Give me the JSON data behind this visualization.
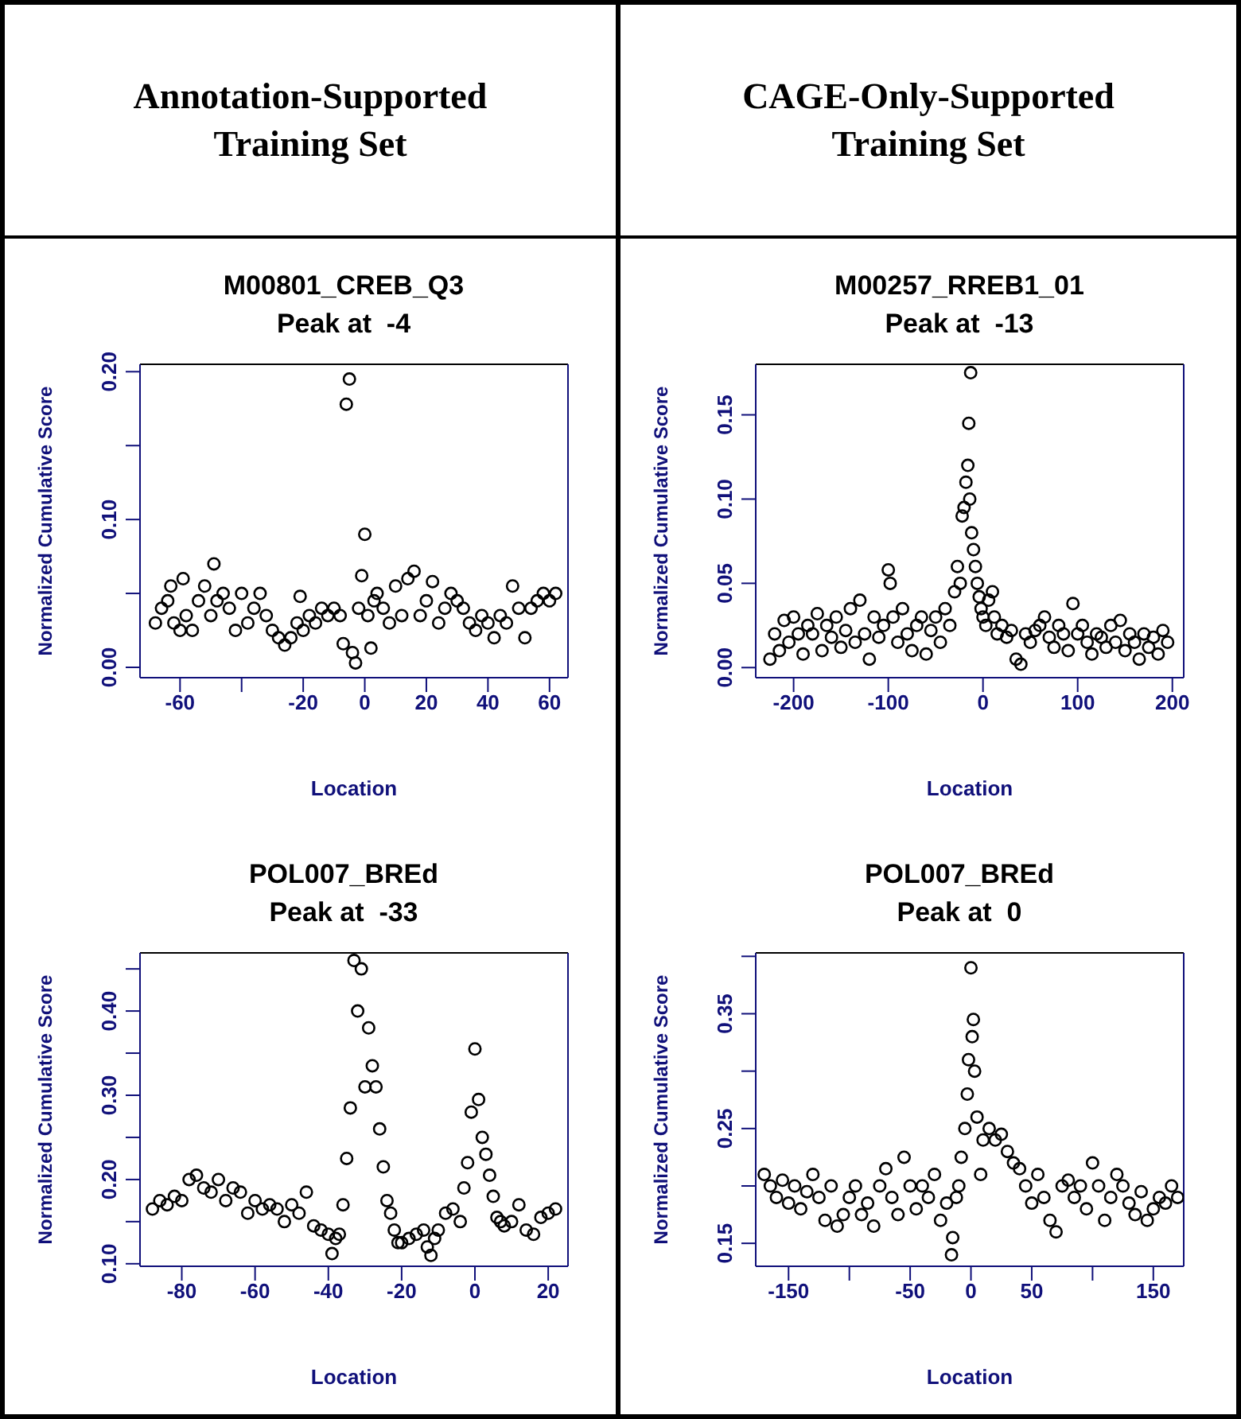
{
  "chart_data": [
    {
      "type": "scatter",
      "annotations": [
        "Annotation-Supported Training Set"
      ],
      "title": "M00801_CREB_Q3",
      "subtitle": "Peak at  -4",
      "xlabel": "Location",
      "ylabel": "Normalized Cumulative Score",
      "marker": "circle",
      "xlim": [
        -73,
        66
      ],
      "ylim": [
        -0.007,
        0.205
      ],
      "xticks": [
        -60,
        {
          "value": -40,
          "label": null
        },
        -20,
        0,
        20,
        40,
        60
      ],
      "yticks": [
        {
          "value": 0,
          "label": "0.00"
        },
        {
          "value": 0.05,
          "label": null
        },
        {
          "value": 0.1,
          "label": "0.10"
        },
        {
          "value": 0.15,
          "label": null
        },
        {
          "value": 0.2,
          "label": "0.20"
        }
      ],
      "x": [
        -68,
        -66,
        -64,
        -63,
        -62,
        -60,
        -59,
        -58,
        -56,
        -54,
        -52,
        -50,
        -49,
        -48,
        -46,
        -44,
        -42,
        -40,
        -38,
        -36,
        -34,
        -32,
        -30,
        -28,
        -26,
        -24,
        -22,
        -21,
        -20,
        -18,
        -16,
        -14,
        -12,
        -10,
        -8,
        -7,
        -6,
        -5,
        -4,
        -3,
        -2,
        -1,
        0,
        1,
        2,
        3,
        4,
        6,
        8,
        10,
        12,
        14,
        16,
        18,
        20,
        22,
        24,
        26,
        28,
        30,
        32,
        34,
        36,
        38,
        40,
        42,
        44,
        46,
        48,
        50,
        52,
        54,
        56,
        58,
        60,
        62
      ],
      "series": [
        {
          "color": "#000000",
          "values": [
            0.03,
            0.04,
            0.045,
            0.055,
            0.03,
            0.025,
            0.06,
            0.035,
            0.025,
            0.045,
            0.055,
            0.035,
            0.07,
            0.045,
            0.05,
            0.04,
            0.025,
            0.05,
            0.03,
            0.04,
            0.05,
            0.035,
            0.025,
            0.02,
            0.015,
            0.02,
            0.03,
            0.048,
            0.025,
            0.035,
            0.03,
            0.04,
            0.035,
            0.04,
            0.035,
            0.016,
            0.178,
            0.195,
            0.01,
            0.003,
            0.04,
            0.062,
            0.09,
            0.035,
            0.013,
            0.045,
            0.05,
            0.04,
            0.03,
            0.055,
            0.035,
            0.06,
            0.065,
            0.035,
            0.045,
            0.058,
            0.03,
            0.04,
            0.05,
            0.045,
            0.04,
            0.03,
            0.025,
            0.035,
            0.03,
            0.02,
            0.035,
            0.03,
            0.055,
            0.04,
            0.02,
            0.04,
            0.045,
            0.05,
            0.045,
            0.05
          ]
        }
      ]
    },
    {
      "type": "scatter",
      "annotations": [
        "CAGE-Only-Supported Training Set"
      ],
      "title": "M00257_RREB1_01",
      "subtitle": "Peak at  -13",
      "xlabel": "Location",
      "ylabel": "Normalized Cumulative Score",
      "marker": "circle",
      "xlim": [
        -240,
        212
      ],
      "ylim": [
        -0.006,
        0.18
      ],
      "xticks": [
        -200,
        -100,
        0,
        100,
        200
      ],
      "yticks": [
        {
          "value": 0,
          "label": "0.00"
        },
        {
          "value": 0.05,
          "label": "0.05"
        },
        {
          "value": 0.1,
          "label": "0.10"
        },
        {
          "value": 0.15,
          "label": "0.15"
        }
      ],
      "x": [
        -225,
        -220,
        -215,
        -210,
        -205,
        -200,
        -195,
        -190,
        -185,
        -180,
        -175,
        -170,
        -165,
        -160,
        -155,
        -150,
        -145,
        -140,
        -135,
        -130,
        -125,
        -120,
        -115,
        -110,
        -105,
        -100,
        -98,
        -95,
        -90,
        -85,
        -80,
        -75,
        -70,
        -65,
        -60,
        -55,
        -50,
        -45,
        -40,
        -35,
        -30,
        -27,
        -24,
        -22,
        -20,
        -18,
        -16,
        -15,
        -14,
        -13,
        -12,
        -10,
        -8,
        -6,
        -4,
        -2,
        0,
        3,
        6,
        10,
        12,
        15,
        20,
        25,
        30,
        35,
        40,
        45,
        50,
        55,
        60,
        65,
        70,
        75,
        80,
        85,
        90,
        95,
        100,
        105,
        110,
        115,
        120,
        125,
        130,
        135,
        140,
        145,
        150,
        155,
        160,
        165,
        170,
        175,
        180,
        185,
        190,
        195
      ],
      "series": [
        {
          "color": "#000000",
          "values": [
            0.005,
            0.02,
            0.01,
            0.028,
            0.015,
            0.03,
            0.02,
            0.008,
            0.025,
            0.02,
            0.032,
            0.01,
            0.025,
            0.018,
            0.03,
            0.012,
            0.022,
            0.035,
            0.015,
            0.04,
            0.02,
            0.005,
            0.03,
            0.018,
            0.025,
            0.058,
            0.05,
            0.03,
            0.015,
            0.035,
            0.02,
            0.01,
            0.025,
            0.03,
            0.008,
            0.022,
            0.03,
            0.015,
            0.035,
            0.025,
            0.045,
            0.06,
            0.05,
            0.09,
            0.095,
            0.11,
            0.12,
            0.145,
            0.1,
            0.175,
            0.08,
            0.07,
            0.06,
            0.05,
            0.042,
            0.035,
            0.03,
            0.025,
            0.04,
            0.045,
            0.03,
            0.02,
            0.025,
            0.018,
            0.022,
            0.005,
            0.002,
            0.02,
            0.015,
            0.022,
            0.025,
            0.03,
            0.018,
            0.012,
            0.025,
            0.02,
            0.01,
            0.038,
            0.02,
            0.025,
            0.015,
            0.008,
            0.02,
            0.018,
            0.012,
            0.025,
            0.015,
            0.028,
            0.01,
            0.02,
            0.015,
            0.005,
            0.02,
            0.012,
            0.018,
            0.008,
            0.022,
            0.015
          ]
        }
      ]
    },
    {
      "type": "scatter",
      "title": "POL007_BREd",
      "subtitle": "Peak at  -33",
      "xlabel": "Location",
      "ylabel": "Normalized Cumulative Score",
      "marker": "circle",
      "xlim": [
        -91.4,
        25.4
      ],
      "ylim": [
        0.097,
        0.469
      ],
      "xticks": [
        -80,
        -60,
        -40,
        -20,
        0,
        20
      ],
      "yticks": [
        {
          "value": 0.1,
          "label": "0.10"
        },
        {
          "value": 0.15,
          "label": null
        },
        {
          "value": 0.2,
          "label": "0.20"
        },
        {
          "value": 0.25,
          "label": null
        },
        {
          "value": 0.3,
          "label": "0.30"
        },
        {
          "value": 0.35,
          "label": null
        },
        {
          "value": 0.4,
          "label": "0.40"
        },
        {
          "value": 0.45,
          "label": null
        }
      ],
      "x": [
        -88,
        -86,
        -84,
        -82,
        -80,
        -78,
        -76,
        -74,
        -72,
        -70,
        -68,
        -66,
        -64,
        -62,
        -60,
        -58,
        -56,
        -54,
        -52,
        -50,
        -48,
        -46,
        -44,
        -42,
        -40,
        -39,
        -38,
        -37,
        -36,
        -35,
        -34,
        -33,
        -32,
        -31,
        -30,
        -29,
        -28,
        -27,
        -26,
        -25,
        -24,
        -23,
        -22,
        -21,
        -20,
        -18,
        -16,
        -14,
        -13,
        -12,
        -11,
        -10,
        -8,
        -6,
        -4,
        -3,
        -2,
        -1,
        0,
        1,
        2,
        3,
        4,
        5,
        6,
        7,
        8,
        10,
        12,
        14,
        16,
        18,
        20,
        22
      ],
      "series": [
        {
          "color": "#000000",
          "values": [
            0.165,
            0.175,
            0.17,
            0.18,
            0.175,
            0.2,
            0.205,
            0.19,
            0.185,
            0.2,
            0.175,
            0.19,
            0.185,
            0.16,
            0.175,
            0.165,
            0.17,
            0.165,
            0.15,
            0.17,
            0.16,
            0.185,
            0.145,
            0.14,
            0.135,
            0.112,
            0.13,
            0.135,
            0.17,
            0.225,
            0.285,
            0.46,
            0.4,
            0.45,
            0.31,
            0.38,
            0.335,
            0.31,
            0.26,
            0.215,
            0.175,
            0.16,
            0.14,
            0.125,
            0.125,
            0.13,
            0.135,
            0.14,
            0.12,
            0.11,
            0.13,
            0.14,
            0.16,
            0.165,
            0.15,
            0.19,
            0.22,
            0.28,
            0.355,
            0.295,
            0.25,
            0.23,
            0.205,
            0.18,
            0.155,
            0.15,
            0.145,
            0.15,
            0.17,
            0.14,
            0.135,
            0.155,
            0.16,
            0.165
          ]
        }
      ]
    },
    {
      "type": "scatter",
      "title": "POL007_BREd",
      "subtitle": "Peak at  0",
      "xlabel": "Location",
      "ylabel": "Normalized Cumulative Score",
      "marker": "circle",
      "xlim": [
        -177,
        175
      ],
      "ylim": [
        0.13,
        0.403
      ],
      "xticks": [
        -150,
        {
          "value": -100,
          "label": null
        },
        -50,
        0,
        50,
        {
          "value": 100,
          "label": null
        },
        150
      ],
      "yticks": [
        {
          "value": 0.15,
          "label": "0.15"
        },
        {
          "value": 0.2,
          "label": null
        },
        {
          "value": 0.25,
          "label": "0.25"
        },
        {
          "value": 0.3,
          "label": null
        },
        {
          "value": 0.35,
          "label": "0.35"
        },
        {
          "value": 0.4,
          "label": null
        }
      ],
      "x": [
        -170,
        -165,
        -160,
        -155,
        -150,
        -145,
        -140,
        -135,
        -130,
        -125,
        -120,
        -115,
        -110,
        -105,
        -100,
        -95,
        -90,
        -85,
        -80,
        -75,
        -70,
        -65,
        -60,
        -55,
        -50,
        -45,
        -40,
        -35,
        -30,
        -25,
        -20,
        -16,
        -15,
        -12,
        -10,
        -8,
        -5,
        -3,
        -2,
        0,
        1,
        2,
        3,
        5,
        8,
        10,
        15,
        20,
        25,
        30,
        35,
        40,
        45,
        50,
        55,
        60,
        65,
        70,
        75,
        80,
        85,
        90,
        95,
        100,
        105,
        110,
        115,
        120,
        125,
        130,
        135,
        140,
        145,
        150,
        155,
        160,
        165,
        170
      ],
      "series": [
        {
          "color": "#000000",
          "values": [
            0.21,
            0.2,
            0.19,
            0.205,
            0.185,
            0.2,
            0.18,
            0.195,
            0.21,
            0.19,
            0.17,
            0.2,
            0.165,
            0.175,
            0.19,
            0.2,
            0.175,
            0.185,
            0.165,
            0.2,
            0.215,
            0.19,
            0.175,
            0.225,
            0.2,
            0.18,
            0.2,
            0.19,
            0.21,
            0.17,
            0.185,
            0.14,
            0.155,
            0.19,
            0.2,
            0.225,
            0.25,
            0.28,
            0.31,
            0.39,
            0.33,
            0.345,
            0.3,
            0.26,
            0.21,
            0.24,
            0.25,
            0.24,
            0.245,
            0.23,
            0.22,
            0.215,
            0.2,
            0.185,
            0.21,
            0.19,
            0.17,
            0.16,
            0.2,
            0.205,
            0.19,
            0.2,
            0.18,
            0.22,
            0.2,
            0.17,
            0.19,
            0.21,
            0.2,
            0.185,
            0.175,
            0.195,
            0.17,
            0.18,
            0.19,
            0.185,
            0.2,
            0.19
          ]
        }
      ]
    }
  ]
}
